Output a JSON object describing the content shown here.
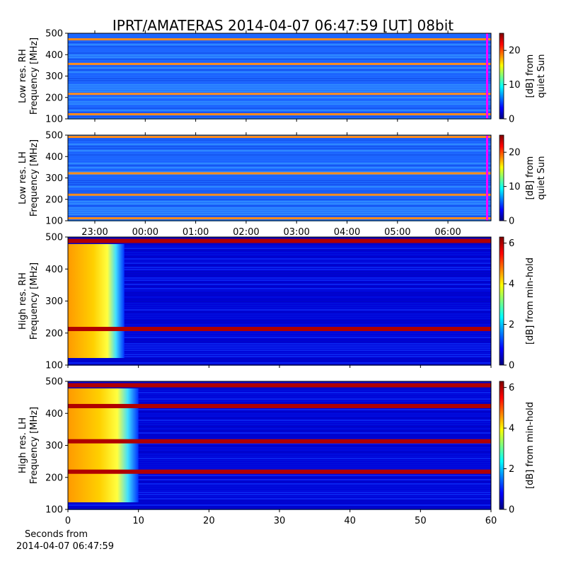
{
  "title": "IPRT/AMATERAS 2014-04-07 06:47:59 [UT]   08bit",
  "colormap": [
    "#00007f",
    "#0000ff",
    "#007fff",
    "#00ffff",
    "#7fff7f",
    "#ffff00",
    "#ff7f00",
    "#ff0000",
    "#7f0000"
  ],
  "marker_color": "#ff00ff",
  "chart_data": [
    {
      "type": "heatmap",
      "name": "low-rh",
      "ylabel": [
        "Low res. RH",
        "Frequency [MHz]"
      ],
      "ylim": [
        100,
        500
      ],
      "yticks": [
        100,
        200,
        300,
        400,
        500
      ],
      "xticks_labels": [
        "23:00",
        "00:00",
        "01:00",
        "02:00",
        "03:00",
        "04:00",
        "05:00",
        "06:00"
      ],
      "colorbar": {
        "label": [
          "[dB] from",
          "quiet Sun"
        ],
        "range": [
          0,
          25
        ],
        "ticks": [
          0,
          10,
          20
        ]
      },
      "bright_bands_mhz": [
        215,
        355,
        470,
        120
      ],
      "current_time_marker": "06:47:59"
    },
    {
      "type": "heatmap",
      "name": "low-lh",
      "ylabel": [
        "Low res. LH",
        "Frequency [MHz]"
      ],
      "ylim": [
        100,
        500
      ],
      "yticks": [
        100,
        200,
        300,
        400,
        500
      ],
      "xticks_labels": [
        "23:00",
        "00:00",
        "01:00",
        "02:00",
        "03:00",
        "04:00",
        "05:00",
        "06:00"
      ],
      "colorbar": {
        "label": [
          "[dB] from",
          "quiet Sun"
        ],
        "range": [
          0,
          25
        ],
        "ticks": [
          0,
          10,
          20
        ]
      },
      "bright_bands_mhz": [
        220,
        320,
        490,
        110
      ],
      "current_time_marker": "06:47:59"
    },
    {
      "type": "heatmap",
      "name": "high-rh",
      "ylabel": [
        "High res. RH",
        "Frequency [MHz]"
      ],
      "ylim": [
        100,
        500
      ],
      "yticks": [
        100,
        200,
        300,
        400,
        500
      ],
      "xlim": [
        0,
        60
      ],
      "colorbar": {
        "label": [
          "[dB] from min-hold"
        ],
        "range": [
          0,
          6.3
        ],
        "ticks": [
          0,
          2,
          4,
          6
        ]
      },
      "bright_bands_mhz": [
        215,
        490
      ],
      "burst_end_s": 8
    },
    {
      "type": "heatmap",
      "name": "high-lh",
      "ylabel": [
        "High res. LH",
        "Frequency [MHz]"
      ],
      "ylim": [
        100,
        500
      ],
      "yticks": [
        100,
        200,
        300,
        400,
        500
      ],
      "xlim": [
        0,
        60
      ],
      "xticks": [
        0,
        10,
        20,
        30,
        40,
        50,
        60
      ],
      "xlabel": [
        "Seconds from",
        "2014-04-07 06:47:59"
      ],
      "colorbar": {
        "label": [
          "[dB] from min-hold"
        ],
        "range": [
          0,
          6.3
        ],
        "ticks": [
          0,
          2,
          4,
          6
        ]
      },
      "bright_bands_mhz": [
        220,
        315,
        490,
        425
      ],
      "burst_end_s": 10
    }
  ]
}
